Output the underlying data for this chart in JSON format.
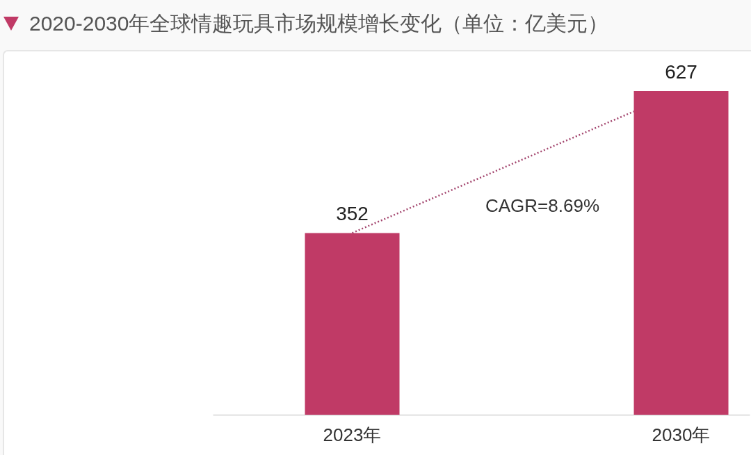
{
  "chart_data": {
    "type": "bar",
    "title": "2020-2030年全球情趣玩具市场规模增长变化（单位：亿美元）",
    "categories": [
      "2023年",
      "2030年"
    ],
    "values": [
      352,
      627
    ],
    "color": "#c03a66",
    "data_labels": true,
    "tick_labels": "x",
    "annotations": [
      "CAGR=8.69%"
    ]
  }
}
